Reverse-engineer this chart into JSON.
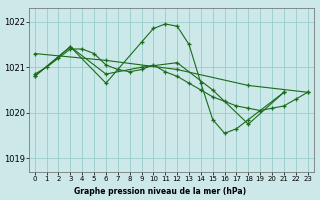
{
  "background_color": "#cce8e8",
  "grid_color": "#99cccc",
  "line_color": "#1a6b1a",
  "xlabel": "Graphe pression niveau de la mer (hPa)",
  "xlim": [
    -0.5,
    23.5
  ],
  "ylim": [
    1018.7,
    1022.3
  ],
  "yticks": [
    1019,
    1020,
    1021,
    1022
  ],
  "xticks": [
    0,
    1,
    2,
    3,
    4,
    5,
    6,
    7,
    8,
    9,
    10,
    11,
    12,
    13,
    14,
    15,
    16,
    17,
    18,
    19,
    20,
    21,
    22,
    23
  ],
  "series": [
    {
      "x": [
        0,
        1,
        2,
        3,
        4,
        5,
        6,
        7,
        8,
        9,
        10,
        11,
        12,
        13,
        14,
        15,
        16,
        17,
        18,
        19,
        20,
        21,
        22,
        23
      ],
      "y": [
        1020.85,
        1021.0,
        1021.2,
        1021.4,
        1021.4,
        1021.3,
        1021.05,
        1020.95,
        1020.9,
        1020.95,
        1021.05,
        1020.9,
        1020.8,
        1020.65,
        1020.5,
        1020.35,
        1020.25,
        1020.15,
        1020.1,
        1020.05,
        1020.1,
        1020.15,
        1020.3,
        1020.45
      ]
    },
    {
      "x": [
        0,
        3,
        6,
        9,
        10,
        11,
        12,
        13,
        14,
        15,
        16,
        17,
        18,
        21
      ],
      "y": [
        1020.8,
        1021.45,
        1020.65,
        1021.55,
        1021.85,
        1021.95,
        1021.9,
        1021.5,
        1020.65,
        1019.85,
        1019.55,
        1019.65,
        1019.85,
        1020.45
      ]
    },
    {
      "x": [
        0,
        3,
        6,
        9,
        12,
        15,
        18,
        21
      ],
      "y": [
        1020.8,
        1021.45,
        1020.85,
        1021.0,
        1021.1,
        1020.5,
        1019.75,
        1020.45
      ]
    },
    {
      "x": [
        0,
        6,
        12,
        18,
        23
      ],
      "y": [
        1021.3,
        1021.15,
        1020.95,
        1020.6,
        1020.45
      ]
    }
  ]
}
